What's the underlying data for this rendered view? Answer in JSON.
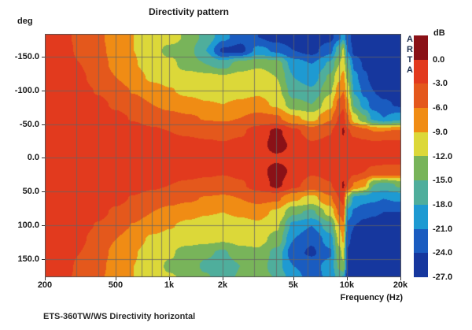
{
  "header": {
    "title": "Directivity pattern"
  },
  "y_axis": {
    "unit_label": "deg",
    "ticks": [
      {
        "label": "-150.0",
        "value": -150
      },
      {
        "label": "-100.0",
        "value": -100
      },
      {
        "label": "-50.0",
        "value": -50
      },
      {
        "label": "0.0",
        "value": 0
      },
      {
        "label": "50.0",
        "value": 50
      },
      {
        "label": "100.0",
        "value": 100
      },
      {
        "label": "150.0",
        "value": 150
      }
    ]
  },
  "x_axis": {
    "title": "Frequency (Hz)",
    "ticks": [
      {
        "label": "200",
        "value": 200
      },
      {
        "label": "500",
        "value": 500
      },
      {
        "label": "1k",
        "value": 1000
      },
      {
        "label": "2k",
        "value": 2000
      },
      {
        "label": "5k",
        "value": 5000
      },
      {
        "label": "10k",
        "value": 10000
      },
      {
        "label": "20k",
        "value": 20000
      }
    ]
  },
  "colorbar": {
    "unit_label": "dB",
    "labels": [
      "0.0",
      "-3.0",
      "-6.0",
      "-9.0",
      "-12.0",
      "-15.0",
      "-18.0",
      "-21.0",
      "-24.0",
      "-27.0"
    ]
  },
  "branding": {
    "logo_text": "ARTA"
  },
  "footer": {
    "caption": "ETS-360TW/WS  Directivity horizontal"
  },
  "chart_data": {
    "type": "heatmap",
    "title": "Directivity pattern",
    "xlabel": "Frequency (Hz)",
    "ylabel": "deg",
    "colorbar_unit": "dB",
    "x_scale": "log",
    "x_range_hz": [
      200,
      20000
    ],
    "y_range_deg": [
      -184,
      176
    ],
    "level_max_db": 0,
    "level_min_db": -27,
    "level_step_db": 3,
    "band_colors": [
      "#8a1117",
      "#e23a1e",
      "#e4581c",
      "#f08c14",
      "#dcd839",
      "#78b45a",
      "#4fae9c",
      "#1e9ad2",
      "#1a5cc0",
      "#16379e"
    ],
    "grid_color": "rgba(100,100,100,0.75)",
    "frame_color": "#555555",
    "minor_freq_gridlines_hz": [
      300,
      400,
      500,
      600,
      700,
      800,
      900,
      1000,
      2000,
      3000,
      4000,
      5000,
      6000,
      7000,
      8000,
      9000,
      10000,
      20000
    ],
    "angle_gridlines_deg": [
      -150,
      -100,
      -50,
      0,
      50,
      100,
      150
    ],
    "x_hz": [
      200,
      250,
      315,
      400,
      500,
      630,
      800,
      1000,
      1250,
      1600,
      2000,
      2500,
      3150,
      4000,
      5000,
      6300,
      8000,
      9000,
      9500,
      10000,
      11000,
      12500,
      14000,
      16000,
      20000
    ],
    "y_deg": [
      -180,
      -160,
      -140,
      -120,
      -100,
      -80,
      -60,
      -40,
      -20,
      0,
      20,
      40,
      60,
      80,
      100,
      120,
      140,
      160,
      180
    ],
    "values_db": [
      [
        -2.0,
        -2.5,
        -3.5,
        -5.5,
        -7.5,
        -9.0,
        -10.0,
        -10.5,
        -12.5,
        -16.0,
        -20.0,
        -23.0,
        -24.0,
        -25.5,
        -26.5,
        -26.5,
        -25.0,
        -22.0,
        -19.0,
        -23.0,
        -25.5,
        -26.5,
        -26.5,
        -26.5,
        -26.5
      ],
      [
        -1.8,
        -2.2,
        -3.4,
        -5.2,
        -7.2,
        -9.0,
        -10.5,
        -13.0,
        -13.5,
        -18.0,
        -24.5,
        -25.0,
        -20.0,
        -21.5,
        -24.0,
        -25.0,
        -22.0,
        -16.0,
        -11.5,
        -21.0,
        -25.0,
        -26.0,
        -26.5,
        -26.5,
        -26.5
      ],
      [
        -1.6,
        -2.0,
        -3.0,
        -4.8,
        -6.8,
        -8.8,
        -10.5,
        -11.0,
        -13.5,
        -15.0,
        -16.5,
        -13.5,
        -12.5,
        -13.5,
        -19.5,
        -21.0,
        -17.5,
        -12.0,
        -10.0,
        -15.5,
        -22.0,
        -24.5,
        -26.0,
        -26.0,
        -26.0
      ],
      [
        -1.4,
        -1.8,
        -2.6,
        -4.2,
        -6.0,
        -7.8,
        -9.5,
        -10.0,
        -10.5,
        -11.0,
        -11.5,
        -11.0,
        -10.5,
        -12.0,
        -18.0,
        -19.5,
        -14.5,
        -9.5,
        -8.0,
        -12.5,
        -20.0,
        -23.5,
        -25.0,
        -25.5,
        -26.0
      ],
      [
        -1.2,
        -1.5,
        -2.2,
        -3.2,
        -4.6,
        -6.2,
        -7.8,
        -8.8,
        -9.6,
        -10.0,
        -10.5,
        -10.0,
        -9.5,
        -11.0,
        -16.5,
        -17.5,
        -12.5,
        -7.5,
        -6.0,
        -10.5,
        -18.5,
        -22.0,
        -24.0,
        -25.0,
        -25.5
      ],
      [
        -1.0,
        -1.2,
        -1.7,
        -2.4,
        -3.4,
        -4.6,
        -6.0,
        -7.0,
        -8.0,
        -8.8,
        -9.0,
        -8.5,
        -8.0,
        -9.5,
        -14.0,
        -15.0,
        -10.0,
        -5.0,
        -3.5,
        -8.0,
        -15.5,
        -19.5,
        -22.5,
        -23.5,
        -24.5
      ],
      [
        -0.8,
        -1.0,
        -1.3,
        -1.8,
        -2.4,
        -3.2,
        -4.0,
        -4.8,
        -5.5,
        -6.2,
        -6.5,
        -6.0,
        -5.0,
        -5.5,
        -8.5,
        -10.0,
        -6.5,
        -2.8,
        -1.8,
        -5.5,
        -11.0,
        -14.5,
        -19.0,
        -21.0,
        -19.0
      ],
      [
        -0.6,
        -0.8,
        -1.0,
        -1.3,
        -1.7,
        -2.1,
        -2.6,
        -3.0,
        -3.4,
        -3.8,
        -4.0,
        -3.4,
        -1.8,
        0.7,
        -2.2,
        -4.5,
        -3.2,
        -1.2,
        0.4,
        -2.6,
        -3.8,
        -4.8,
        -6.0,
        -6.0,
        -5.5
      ],
      [
        -0.4,
        -0.5,
        -0.7,
        -0.9,
        -1.1,
        -1.4,
        -1.7,
        -2.0,
        -2.2,
        -2.5,
        -2.8,
        -2.4,
        -1.2,
        1.2,
        -0.6,
        -2.6,
        -2.2,
        -1.0,
        -1.3,
        -1.6,
        -1.9,
        -2.1,
        -2.2,
        -2.1,
        -1.9
      ],
      [
        -0.3,
        -0.4,
        -0.5,
        -0.7,
        -0.9,
        -1.1,
        -1.3,
        -1.5,
        -1.7,
        -2.0,
        -2.2,
        -2.0,
        -1.2,
        -0.5,
        -0.9,
        -2.0,
        -1.8,
        -1.2,
        -1.5,
        -1.7,
        -2.0,
        -2.2,
        -2.4,
        -2.4,
        -2.3
      ],
      [
        -0.4,
        -0.5,
        -0.7,
        -0.9,
        -1.1,
        -1.4,
        -1.7,
        -2.0,
        -2.2,
        -2.5,
        -2.8,
        -2.4,
        -1.2,
        1.2,
        -0.6,
        -2.6,
        -2.2,
        -1.1,
        -1.3,
        -1.8,
        -2.4,
        -3.0,
        -3.4,
        -3.6,
        -3.8
      ],
      [
        -0.6,
        -0.8,
        -1.0,
        -1.3,
        -1.7,
        -2.1,
        -2.6,
        -3.0,
        -3.4,
        -3.8,
        -4.0,
        -3.4,
        -1.8,
        0.7,
        -2.2,
        -4.5,
        -3.2,
        -1.3,
        0.4,
        -3.0,
        -6.5,
        -8.5,
        -15.0,
        -16.5,
        -14.5
      ],
      [
        -0.8,
        -1.0,
        -1.3,
        -1.8,
        -2.4,
        -3.2,
        -4.0,
        -4.8,
        -5.5,
        -6.2,
        -6.5,
        -6.0,
        -5.0,
        -5.5,
        -8.5,
        -10.0,
        -6.5,
        -3.0,
        -2.2,
        -13.0,
        -19.0,
        -20.0,
        -20.5,
        -21.0,
        -20.5
      ],
      [
        -1.0,
        -1.2,
        -1.7,
        -2.4,
        -3.4,
        -4.6,
        -6.0,
        -7.0,
        -8.0,
        -8.8,
        -9.0,
        -8.5,
        -8.0,
        -9.5,
        -14.5,
        -15.5,
        -11.0,
        -5.5,
        -4.0,
        -19.0,
        -21.5,
        -23.0,
        -23.5,
        -24.0,
        -24.0
      ],
      [
        -1.2,
        -1.5,
        -2.2,
        -3.2,
        -4.6,
        -6.2,
        -7.8,
        -8.8,
        -9.6,
        -10.0,
        -10.5,
        -10.0,
        -9.5,
        -11.5,
        -19.0,
        -21.0,
        -16.0,
        -9.0,
        -6.5,
        -22.0,
        -24.0,
        -25.0,
        -25.5,
        -26.0,
        -26.0
      ],
      [
        -1.4,
        -1.8,
        -2.6,
        -4.2,
        -6.0,
        -7.8,
        -9.5,
        -10.0,
        -10.5,
        -11.0,
        -11.5,
        -11.0,
        -11.0,
        -13.0,
        -21.0,
        -23.5,
        -19.5,
        -11.0,
        -8.5,
        -23.0,
        -25.5,
        -26.0,
        -26.0,
        -26.5,
        -26.5
      ],
      [
        -1.6,
        -2.0,
        -3.0,
        -4.8,
        -6.8,
        -8.8,
        -10.5,
        -11.5,
        -13.5,
        -14.5,
        -15.5,
        -13.0,
        -12.5,
        -16.0,
        -23.0,
        -24.5,
        -21.5,
        -13.0,
        -11.0,
        -24.5,
        -26.0,
        -26.5,
        -26.5,
        -26.5,
        -26.5
      ],
      [
        -1.8,
        -2.2,
        -3.4,
        -5.2,
        -7.2,
        -9.0,
        -10.5,
        -12.5,
        -13.5,
        -15.5,
        -17.5,
        -15.0,
        -13.0,
        -17.0,
        -21.0,
        -22.0,
        -20.0,
        -14.5,
        -12.5,
        -24.5,
        -26.0,
        -26.5,
        -26.5,
        -26.5,
        -26.5
      ],
      [
        -2.0,
        -2.5,
        -3.5,
        -5.5,
        -7.5,
        -9.0,
        -10.5,
        -11.5,
        -12.5,
        -14.5,
        -16.5,
        -14.5,
        -13.0,
        -15.0,
        -20.0,
        -22.0,
        -20.5,
        -17.0,
        -19.5,
        -25.0,
        -26.5,
        -26.5,
        -26.5,
        -26.5,
        -26.5
      ]
    ]
  }
}
